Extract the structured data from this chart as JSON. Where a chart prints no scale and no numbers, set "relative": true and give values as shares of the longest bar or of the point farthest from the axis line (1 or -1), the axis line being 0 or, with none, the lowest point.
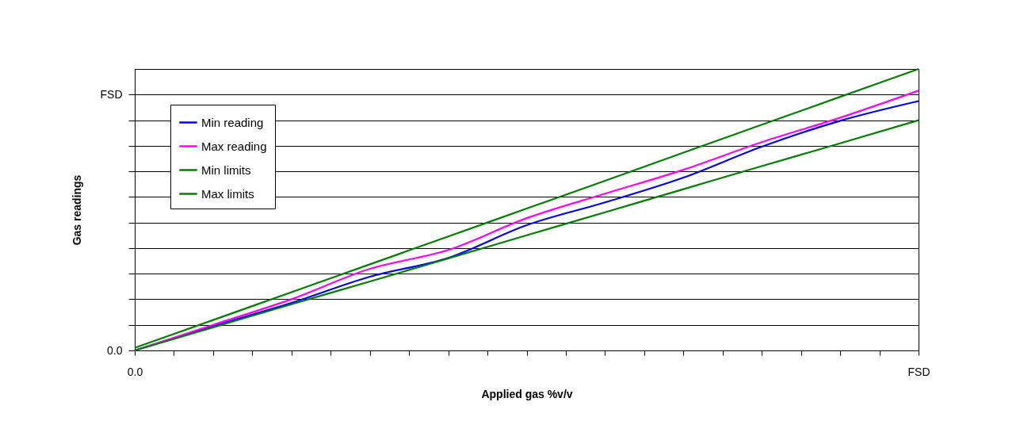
{
  "chart_data": {
    "type": "line",
    "xlabel": "Applied gas %v/v",
    "ylabel": "Gas readings",
    "relative": true,
    "categories": [
      "0.0",
      null,
      null,
      null,
      null,
      null,
      null,
      null,
      null,
      null,
      "FSD"
    ],
    "series": [
      {
        "name": "Min reading",
        "color": "#0000ff",
        "values": [
          0,
          0.087,
          0.169,
          0.262,
          0.329,
          0.445,
          0.526,
          0.614,
          0.724,
          0.816,
          0.886
        ]
      },
      {
        "name": "Max reading",
        "color": "#ff00ff",
        "values": [
          0,
          0.091,
          0.182,
          0.29,
          0.357,
          0.47,
          0.557,
          0.642,
          0.74,
          0.827,
          0.923
        ]
      },
      {
        "name": "Min limits",
        "color": "#008000",
        "values": [
          0,
          0.082,
          0.164,
          0.245,
          0.327,
          0.409,
          0.491,
          0.573,
          0.655,
          0.736,
          0.818
        ]
      },
      {
        "name": "Max limits",
        "color": "#008000",
        "values": [
          0.009,
          0.108,
          0.207,
          0.306,
          0.405,
          0.504,
          0.603,
          0.703,
          0.802,
          0.901,
          1
        ]
      }
    ],
    "annotations": [
      "0.0",
      "FSD"
    ],
    "grid": "y",
    "legend": "top left",
    "marker": "none",
    "line_style": "solid"
  }
}
